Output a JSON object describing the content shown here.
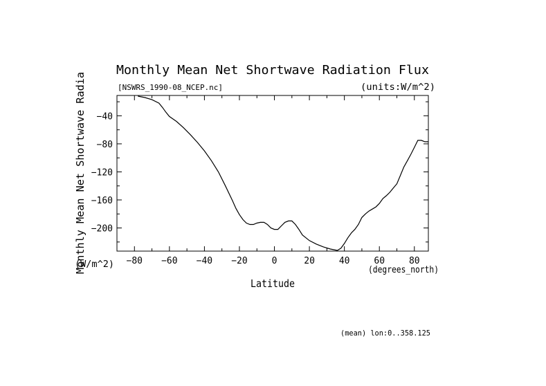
{
  "chart_data": {
    "type": "line",
    "title": "Monthly Mean Net Shortwave Radiation Flux",
    "file_label": "[NSWRS_1990-08_NCEP.nc]",
    "units_label": "(units:W/m^2)",
    "ylabel": "Monthly Mean Net Shortwave Radia",
    "yunits": "(W/m^2)",
    "xlabel": "Latitude",
    "xunits": "(degrees_north)",
    "footer": "(mean) lon:0..358.125",
    "xlim": [
      -90,
      88
    ],
    "ylim": [
      -233,
      -11
    ],
    "x_ticks": [
      -80,
      -60,
      -40,
      -20,
      0,
      20,
      40,
      60,
      80
    ],
    "y_ticks": [
      -40,
      -80,
      -120,
      -160,
      -200
    ],
    "grid": false,
    "series": [
      {
        "x": [
          -78,
          -74,
          -70,
          -66,
          -64,
          -62,
          -60,
          -56,
          -52,
          -48,
          -44,
          -40,
          -36,
          -32,
          -28,
          -24,
          -22,
          -20,
          -18,
          -16,
          -14,
          -12,
          -10,
          -8,
          -6,
          -4,
          -2,
          0,
          2,
          4,
          6,
          8,
          10,
          12,
          14,
          16,
          20,
          24,
          28,
          32,
          34,
          36,
          38,
          40,
          42,
          44,
          46,
          48,
          50,
          52,
          54,
          56,
          58,
          60,
          62,
          64,
          66,
          68,
          70,
          72,
          74,
          76,
          78,
          80,
          82,
          84,
          86,
          88
        ],
        "y": [
          -12,
          -14,
          -17,
          -22,
          -28,
          -35,
          -41,
          -48,
          -57,
          -67,
          -78,
          -90,
          -104,
          -120,
          -140,
          -161,
          -172,
          -181,
          -188,
          -193,
          -195,
          -195,
          -193,
          -192,
          -192,
          -195,
          -200,
          -202,
          -202,
          -197,
          -192,
          -190,
          -190,
          -195,
          -202,
          -210,
          -218,
          -223,
          -227,
          -230,
          -231,
          -232,
          -229,
          -222,
          -214,
          -207,
          -202,
          -195,
          -185,
          -180,
          -176,
          -173,
          -170,
          -165,
          -158,
          -154,
          -149,
          -143,
          -137,
          -125,
          -113,
          -104,
          -95,
          -85,
          -75,
          -75,
          -77,
          -77
        ]
      }
    ]
  }
}
